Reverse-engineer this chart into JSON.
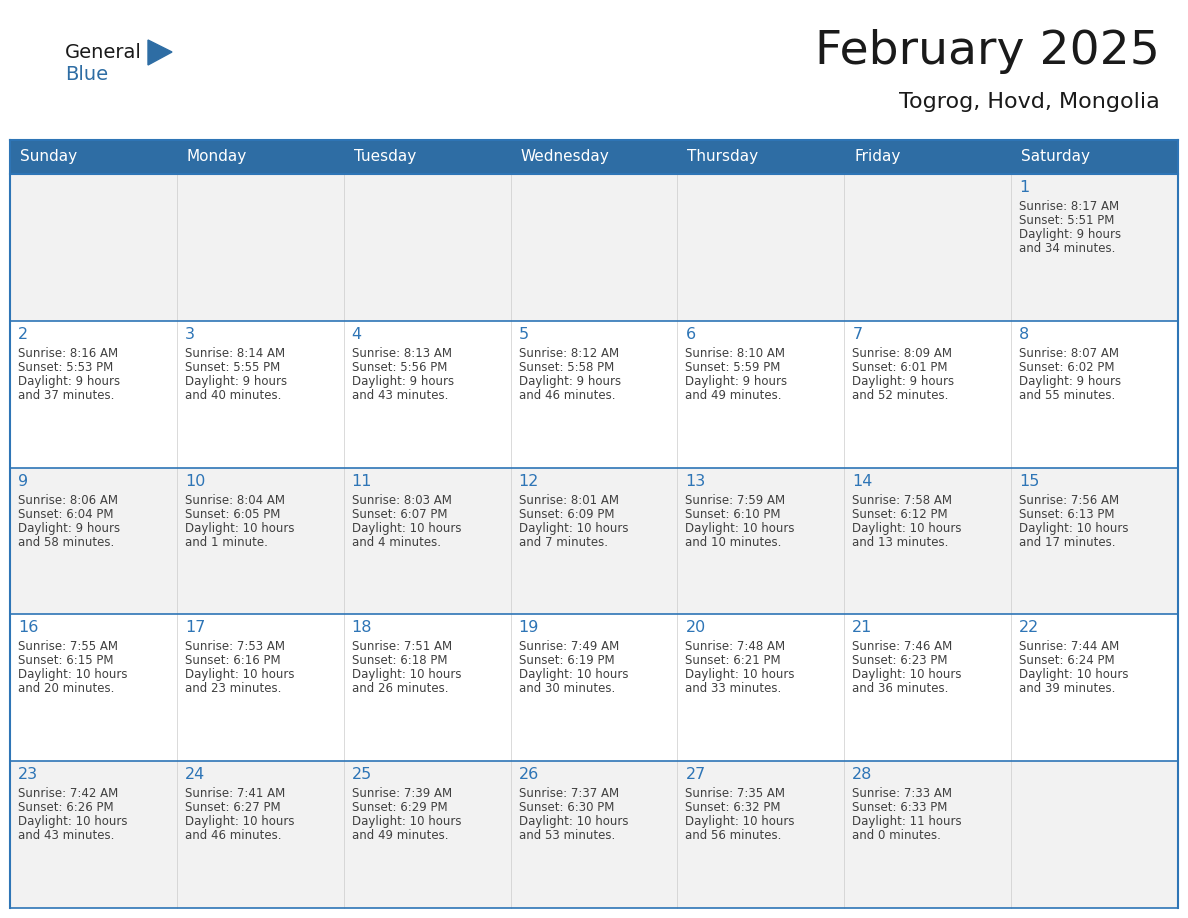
{
  "title": "February 2025",
  "subtitle": "Togrog, Hovd, Mongolia",
  "header_bg": "#2E6DA4",
  "header_text_color": "#FFFFFF",
  "row_bg_light": "#F2F2F2",
  "row_bg_white": "#FFFFFF",
  "border_color": "#2E75B6",
  "day_number_color": "#2E75B6",
  "cell_text_color": "#404040",
  "days_of_week": [
    "Sunday",
    "Monday",
    "Tuesday",
    "Wednesday",
    "Thursday",
    "Friday",
    "Saturday"
  ],
  "logo_general_color": "#1a1a1a",
  "logo_blue_color": "#2E6DA4",
  "logo_triangle_color": "#2E6DA4",
  "calendar_data": [
    [
      null,
      null,
      null,
      null,
      null,
      null,
      {
        "day": "1",
        "sunrise": "8:17 AM",
        "sunset": "5:51 PM",
        "daylight1": "9 hours",
        "daylight2": "and 34 minutes."
      }
    ],
    [
      {
        "day": "2",
        "sunrise": "8:16 AM",
        "sunset": "5:53 PM",
        "daylight1": "9 hours",
        "daylight2": "and 37 minutes."
      },
      {
        "day": "3",
        "sunrise": "8:14 AM",
        "sunset": "5:55 PM",
        "daylight1": "9 hours",
        "daylight2": "and 40 minutes."
      },
      {
        "day": "4",
        "sunrise": "8:13 AM",
        "sunset": "5:56 PM",
        "daylight1": "9 hours",
        "daylight2": "and 43 minutes."
      },
      {
        "day": "5",
        "sunrise": "8:12 AM",
        "sunset": "5:58 PM",
        "daylight1": "9 hours",
        "daylight2": "and 46 minutes."
      },
      {
        "day": "6",
        "sunrise": "8:10 AM",
        "sunset": "5:59 PM",
        "daylight1": "9 hours",
        "daylight2": "and 49 minutes."
      },
      {
        "day": "7",
        "sunrise": "8:09 AM",
        "sunset": "6:01 PM",
        "daylight1": "9 hours",
        "daylight2": "and 52 minutes."
      },
      {
        "day": "8",
        "sunrise": "8:07 AM",
        "sunset": "6:02 PM",
        "daylight1": "9 hours",
        "daylight2": "and 55 minutes."
      }
    ],
    [
      {
        "day": "9",
        "sunrise": "8:06 AM",
        "sunset": "6:04 PM",
        "daylight1": "9 hours",
        "daylight2": "and 58 minutes."
      },
      {
        "day": "10",
        "sunrise": "8:04 AM",
        "sunset": "6:05 PM",
        "daylight1": "10 hours",
        "daylight2": "and 1 minute."
      },
      {
        "day": "11",
        "sunrise": "8:03 AM",
        "sunset": "6:07 PM",
        "daylight1": "10 hours",
        "daylight2": "and 4 minutes."
      },
      {
        "day": "12",
        "sunrise": "8:01 AM",
        "sunset": "6:09 PM",
        "daylight1": "10 hours",
        "daylight2": "and 7 minutes."
      },
      {
        "day": "13",
        "sunrise": "7:59 AM",
        "sunset": "6:10 PM",
        "daylight1": "10 hours",
        "daylight2": "and 10 minutes."
      },
      {
        "day": "14",
        "sunrise": "7:58 AM",
        "sunset": "6:12 PM",
        "daylight1": "10 hours",
        "daylight2": "and 13 minutes."
      },
      {
        "day": "15",
        "sunrise": "7:56 AM",
        "sunset": "6:13 PM",
        "daylight1": "10 hours",
        "daylight2": "and 17 minutes."
      }
    ],
    [
      {
        "day": "16",
        "sunrise": "7:55 AM",
        "sunset": "6:15 PM",
        "daylight1": "10 hours",
        "daylight2": "and 20 minutes."
      },
      {
        "day": "17",
        "sunrise": "7:53 AM",
        "sunset": "6:16 PM",
        "daylight1": "10 hours",
        "daylight2": "and 23 minutes."
      },
      {
        "day": "18",
        "sunrise": "7:51 AM",
        "sunset": "6:18 PM",
        "daylight1": "10 hours",
        "daylight2": "and 26 minutes."
      },
      {
        "day": "19",
        "sunrise": "7:49 AM",
        "sunset": "6:19 PM",
        "daylight1": "10 hours",
        "daylight2": "and 30 minutes."
      },
      {
        "day": "20",
        "sunrise": "7:48 AM",
        "sunset": "6:21 PM",
        "daylight1": "10 hours",
        "daylight2": "and 33 minutes."
      },
      {
        "day": "21",
        "sunrise": "7:46 AM",
        "sunset": "6:23 PM",
        "daylight1": "10 hours",
        "daylight2": "and 36 minutes."
      },
      {
        "day": "22",
        "sunrise": "7:44 AM",
        "sunset": "6:24 PM",
        "daylight1": "10 hours",
        "daylight2": "and 39 minutes."
      }
    ],
    [
      {
        "day": "23",
        "sunrise": "7:42 AM",
        "sunset": "6:26 PM",
        "daylight1": "10 hours",
        "daylight2": "and 43 minutes."
      },
      {
        "day": "24",
        "sunrise": "7:41 AM",
        "sunset": "6:27 PM",
        "daylight1": "10 hours",
        "daylight2": "and 46 minutes."
      },
      {
        "day": "25",
        "sunrise": "7:39 AM",
        "sunset": "6:29 PM",
        "daylight1": "10 hours",
        "daylight2": "and 49 minutes."
      },
      {
        "day": "26",
        "sunrise": "7:37 AM",
        "sunset": "6:30 PM",
        "daylight1": "10 hours",
        "daylight2": "and 53 minutes."
      },
      {
        "day": "27",
        "sunrise": "7:35 AM",
        "sunset": "6:32 PM",
        "daylight1": "10 hours",
        "daylight2": "and 56 minutes."
      },
      {
        "day": "28",
        "sunrise": "7:33 AM",
        "sunset": "6:33 PM",
        "daylight1": "11 hours",
        "daylight2": "and 0 minutes."
      },
      null
    ]
  ]
}
